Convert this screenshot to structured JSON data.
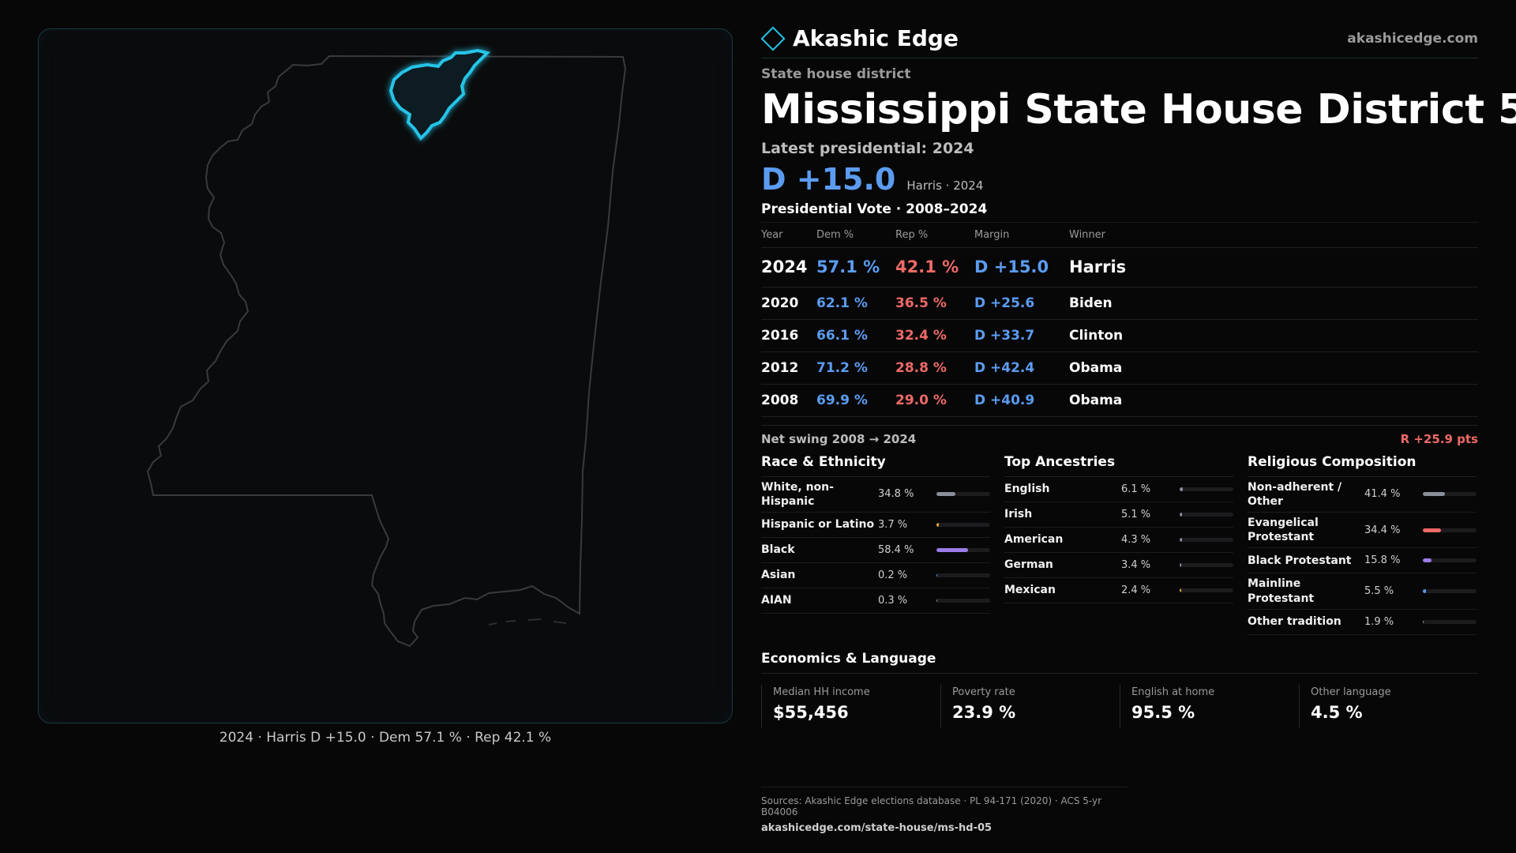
{
  "brand": {
    "name": "Akashic Edge",
    "url": "akashicedge.com",
    "logo_icon": "diamond-outline-icon",
    "accent": "#25c4e8"
  },
  "header": {
    "kicker": "State house district",
    "title": "Mississippi State House District 5",
    "latest_label": "Latest presidential: 2024",
    "margin": "D +15.0",
    "margin_sub": "Harris · 2024"
  },
  "map": {
    "caption": "2024 · Harris D +15.0 · Dem 57.1 % · Rep 42.1 %",
    "highlight_color": "#25c4e8"
  },
  "votes": {
    "title": "Presidential Vote · 2008–2024",
    "columns": [
      "Year",
      "Dem %",
      "Rep %",
      "Margin",
      "Winner"
    ],
    "rows": [
      {
        "year": "2024",
        "dem": "57.1 %",
        "rep": "42.1 %",
        "margin": "D +15.0",
        "winner": "Harris"
      },
      {
        "year": "2020",
        "dem": "62.1 %",
        "rep": "36.5 %",
        "margin": "D +25.6",
        "winner": "Biden"
      },
      {
        "year": "2016",
        "dem": "66.1 %",
        "rep": "32.4 %",
        "margin": "D +33.7",
        "winner": "Clinton"
      },
      {
        "year": "2012",
        "dem": "71.2 %",
        "rep": "28.8 %",
        "margin": "D +42.4",
        "winner": "Obama"
      },
      {
        "year": "2008",
        "dem": "69.9 %",
        "rep": "29.0 %",
        "margin": "D +40.9",
        "winner": "Obama"
      }
    ],
    "colors": {
      "dem": "#5b9cf0",
      "rep": "#ee6a66"
    }
  },
  "swing": {
    "label": "Net swing 2008 → 2024",
    "value": "R +25.9 pts"
  },
  "race": {
    "title": "Race & Ethnicity",
    "items": [
      {
        "label": "White, non-Hispanic",
        "value": "34.8 %",
        "pct": 34.8,
        "color": "#8a8f9a"
      },
      {
        "label": "Hispanic or Latino",
        "value": "3.7 %",
        "pct": 3.7,
        "color": "#e0a43a"
      },
      {
        "label": "Black",
        "value": "58.4 %",
        "pct": 58.4,
        "color": "#9b7ce8"
      },
      {
        "label": "Asian",
        "value": "0.2 %",
        "pct": 0.2,
        "color": "#5b9cf0"
      },
      {
        "label": "AIAN",
        "value": "0.3 %",
        "pct": 0.3,
        "color": "#8a8f9a"
      }
    ]
  },
  "ancestry": {
    "title": "Top Ancestries",
    "items": [
      {
        "label": "English",
        "value": "6.1 %",
        "pct": 6.1,
        "color": "#8a8f9a"
      },
      {
        "label": "Irish",
        "value": "5.1 %",
        "pct": 5.1,
        "color": "#8a8f9a"
      },
      {
        "label": "American",
        "value": "4.3 %",
        "pct": 4.3,
        "color": "#8a8f9a"
      },
      {
        "label": "German",
        "value": "3.4 %",
        "pct": 3.4,
        "color": "#8a8f9a"
      },
      {
        "label": "Mexican",
        "value": "2.4 %",
        "pct": 2.4,
        "color": "#e0a43a"
      }
    ]
  },
  "religion": {
    "title": "Religious Composition",
    "items": [
      {
        "label": "Non-adherent / Other",
        "value": "41.4 %",
        "pct": 41.4,
        "color": "#8a8f9a"
      },
      {
        "label": "Evangelical Protestant",
        "value": "34.4 %",
        "pct": 34.4,
        "color": "#ee6a66"
      },
      {
        "label": "Black Protestant",
        "value": "15.8 %",
        "pct": 15.8,
        "color": "#9b7ce8"
      },
      {
        "label": "Mainline Protestant",
        "value": "5.5 %",
        "pct": 5.5,
        "color": "#5b9cf0"
      },
      {
        "label": "Other tradition",
        "value": "1.9 %",
        "pct": 1.9,
        "color": "#8a8f9a"
      }
    ]
  },
  "economics": {
    "title": "Economics & Language",
    "cells": [
      {
        "label": "Median HH income",
        "value": "$55,456"
      },
      {
        "label": "Poverty rate",
        "value": "23.9 %"
      },
      {
        "label": "English at home",
        "value": "95.5 %"
      },
      {
        "label": "Other language",
        "value": "4.5 %"
      }
    ]
  },
  "sources": {
    "text": "Sources: Akashic Edge elections database · PL 94-171 (2020) · ACS 5-yr B04006",
    "link": "akashicedge.com/state-house/ms-hd-05"
  }
}
